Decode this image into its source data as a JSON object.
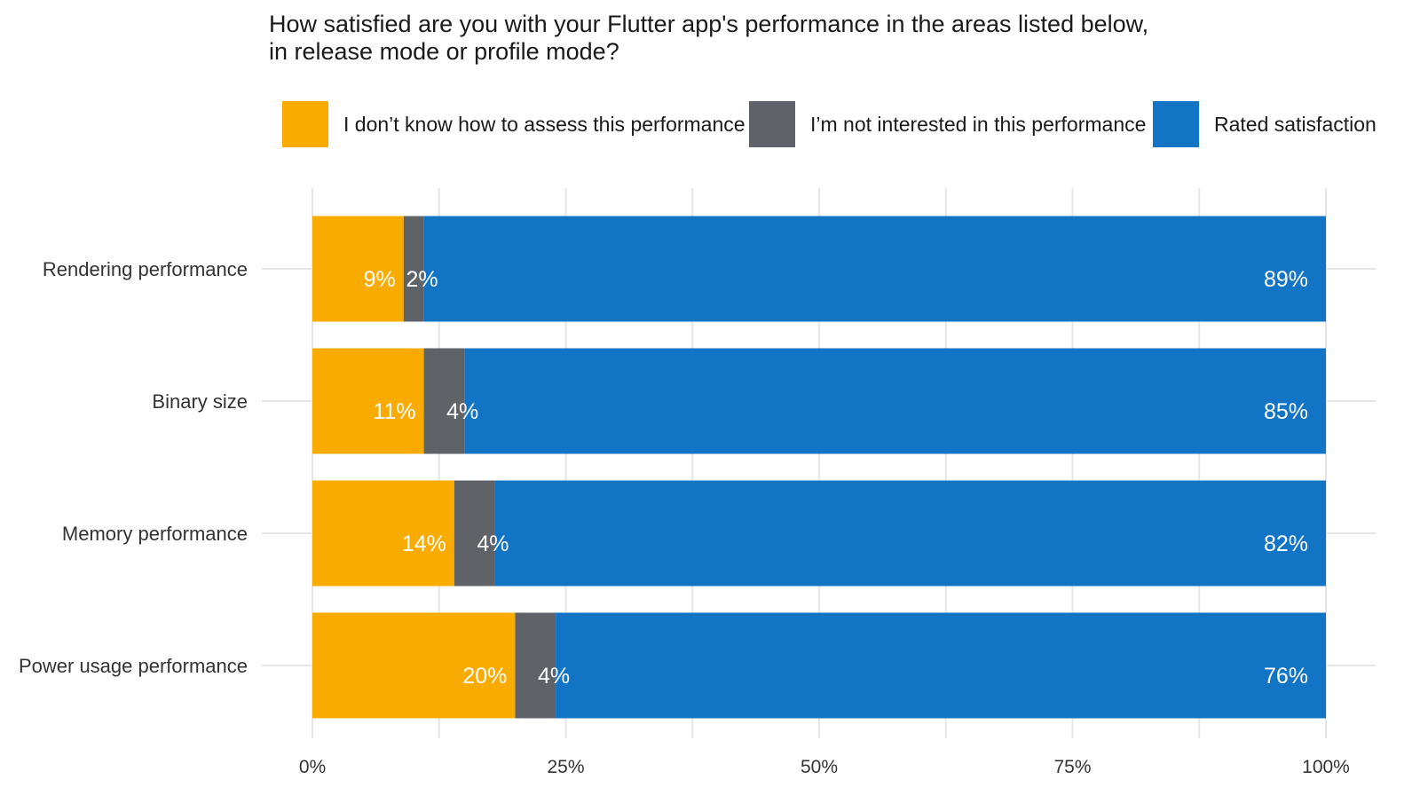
{
  "chart_data": {
    "type": "bar",
    "orientation": "horizontal",
    "stacked": true,
    "title": "How satisfied are you with your Flutter app's performance in the areas listed below,\n in release mode or profile mode?",
    "categories": [
      "Rendering performance",
      "Binary size",
      "Memory performance",
      "Power usage performance"
    ],
    "series": [
      {
        "name": "I don’t know how to assess this performance",
        "color": "#F9AB00",
        "values": [
          9,
          11,
          14,
          20
        ]
      },
      {
        "name": "I’m not interested in this performance",
        "color": "#5F6368",
        "values": [
          2,
          4,
          4,
          4
        ]
      },
      {
        "name": "Rated satisfaction",
        "color": "#1174C4",
        "values": [
          89,
          85,
          82,
          76
        ]
      }
    ],
    "data_label_suffix": "%",
    "xlim": [
      0,
      100
    ],
    "x_ticks": [
      {
        "value": 0,
        "label": "0%"
      },
      {
        "value": 25,
        "label": "25%"
      },
      {
        "value": 50,
        "label": "50%"
      },
      {
        "value": 75,
        "label": "75%"
      },
      {
        "value": 100,
        "label": "100%"
      }
    ],
    "legend_position": "top",
    "grid": true
  }
}
